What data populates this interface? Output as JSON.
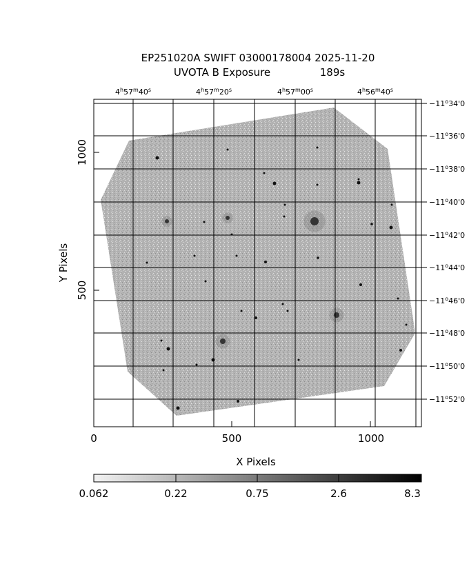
{
  "title": {
    "line1": "EP251020A SWIFT 03000178004 2025-11-20",
    "line2_label": "UVOTA B Exposure",
    "line2_value": "189s"
  },
  "axes": {
    "xlabel": "X Pixels",
    "ylabel": "Y Pixels",
    "x_ticks": [
      "0",
      "500",
      "1000"
    ],
    "y_ticks": [
      "500",
      "1000"
    ],
    "ra_ticks": [
      {
        "h": "4",
        "m": "57",
        "s": "40"
      },
      {
        "h": "4",
        "m": "57",
        "s": "20"
      },
      {
        "h": "4",
        "m": "57",
        "s": "00"
      },
      {
        "h": "4",
        "m": "56",
        "s": "40"
      }
    ],
    "dec_ticks": [
      {
        "d": "−11",
        "m": "34",
        "s": "0"
      },
      {
        "d": "−11",
        "m": "36",
        "s": "0"
      },
      {
        "d": "−11",
        "m": "38",
        "s": "0"
      },
      {
        "d": "−11",
        "m": "40",
        "s": "0"
      },
      {
        "d": "−11",
        "m": "42",
        "s": "0"
      },
      {
        "d": "−11",
        "m": "44",
        "s": "0"
      },
      {
        "d": "−11",
        "m": "46",
        "s": "0"
      },
      {
        "d": "−11",
        "m": "48",
        "s": "0"
      },
      {
        "d": "−11",
        "m": "50",
        "s": "0"
      },
      {
        "d": "−11",
        "m": "52",
        "s": "0"
      }
    ]
  },
  "colorbar": {
    "labels": [
      "0.062",
      "0.22",
      "0.75",
      "2.6",
      "8.3"
    ]
  },
  "colors": {
    "frame": "#000000",
    "image_fill": "#b0b0b0",
    "background": "#ffffff"
  }
}
